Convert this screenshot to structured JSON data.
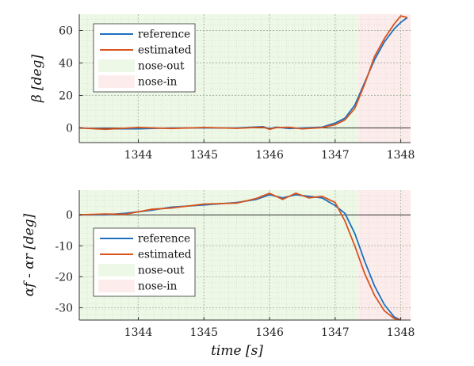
{
  "chart_data": [
    {
      "type": "line",
      "ylabel": "β [deg]",
      "xlabel": "",
      "xlim": [
        1343.1,
        1348.15
      ],
      "ylim": [
        -9,
        70
      ],
      "x_ticks": [
        1344,
        1345,
        1346,
        1347,
        1348
      ],
      "y_ticks": [
        0,
        20,
        40,
        60
      ],
      "grid": true,
      "legend_position": "top-left",
      "regions": [
        {
          "name": "nose-out",
          "x": [
            1343.1,
            1347.35
          ],
          "color": "#eef8e6"
        },
        {
          "name": "nose-in",
          "x": [
            1347.35,
            1348.15
          ],
          "color": "#fdecec"
        }
      ],
      "series": [
        {
          "name": "reference",
          "color": "#1f6fbf",
          "x": [
            1343.1,
            1343.5,
            1344.0,
            1344.5,
            1345.0,
            1345.5,
            1345.9,
            1346.0,
            1346.1,
            1346.3,
            1346.5,
            1346.8,
            1347.0,
            1347.15,
            1347.3,
            1347.45,
            1347.6,
            1347.75,
            1347.9,
            1348.0,
            1348.1
          ],
          "y": [
            0,
            -0.5,
            -0.5,
            0,
            0,
            0,
            0.8,
            -0.5,
            0.5,
            -0.3,
            0,
            0.5,
            3,
            6,
            14,
            28,
            42,
            53,
            61,
            65,
            68
          ]
        },
        {
          "name": "estimated",
          "color": "#d9541e",
          "x": [
            1343.1,
            1343.5,
            1344.0,
            1344.5,
            1345.0,
            1345.5,
            1345.9,
            1346.0,
            1346.1,
            1346.3,
            1346.5,
            1346.8,
            1347.0,
            1347.15,
            1347.3,
            1347.45,
            1347.6,
            1347.75,
            1347.9,
            1348.0,
            1348.1
          ],
          "y": [
            0,
            -0.8,
            0.3,
            -0.3,
            0.3,
            -0.2,
            0.5,
            -0.8,
            0.2,
            0.4,
            -0.5,
            0.2,
            2,
            5,
            12,
            27,
            44,
            55,
            64,
            69,
            68
          ]
        }
      ]
    },
    {
      "type": "line",
      "ylabel": "αf - αr [deg]",
      "xlabel": "time [s]",
      "xlim": [
        1343.1,
        1348.15
      ],
      "ylim": [
        -34,
        8
      ],
      "x_ticks": [
        1344,
        1345,
        1346,
        1347,
        1348
      ],
      "y_ticks": [
        0,
        -10,
        -20,
        -30
      ],
      "grid": true,
      "legend_position": "left",
      "regions": [
        {
          "name": "nose-out",
          "x": [
            1343.1,
            1347.35
          ],
          "color": "#eef8e6"
        },
        {
          "name": "nose-in",
          "x": [
            1347.35,
            1348.15
          ],
          "color": "#fdecec"
        }
      ],
      "series": [
        {
          "name": "reference",
          "color": "#1f6fbf",
          "x": [
            1343.1,
            1343.5,
            1343.8,
            1344.2,
            1344.5,
            1345.0,
            1345.5,
            1345.8,
            1346.0,
            1346.2,
            1346.4,
            1346.6,
            1346.8,
            1347.0,
            1347.15,
            1347.3,
            1347.45,
            1347.6,
            1347.75,
            1347.9,
            1348.0
          ],
          "y": [
            0,
            0,
            0.5,
            1.5,
            2.5,
            3.2,
            4,
            5,
            6.5,
            5.5,
            6.5,
            6,
            5.5,
            3,
            0.5,
            -6,
            -15,
            -23,
            -29,
            -33,
            -34
          ]
        },
        {
          "name": "estimated",
          "color": "#d9541e",
          "x": [
            1343.1,
            1343.5,
            1343.8,
            1344.2,
            1344.5,
            1345.0,
            1345.5,
            1345.8,
            1346.0,
            1346.2,
            1346.4,
            1346.6,
            1346.8,
            1347.0,
            1347.15,
            1347.3,
            1347.45,
            1347.6,
            1347.75,
            1347.9,
            1348.0
          ],
          "y": [
            0,
            0.3,
            0.2,
            1.8,
            2.2,
            3.5,
            3.8,
            5.3,
            7,
            5,
            7,
            5.5,
            6,
            4,
            -2,
            -10,
            -19,
            -26,
            -31,
            -33.5,
            -34
          ]
        }
      ]
    }
  ]
}
